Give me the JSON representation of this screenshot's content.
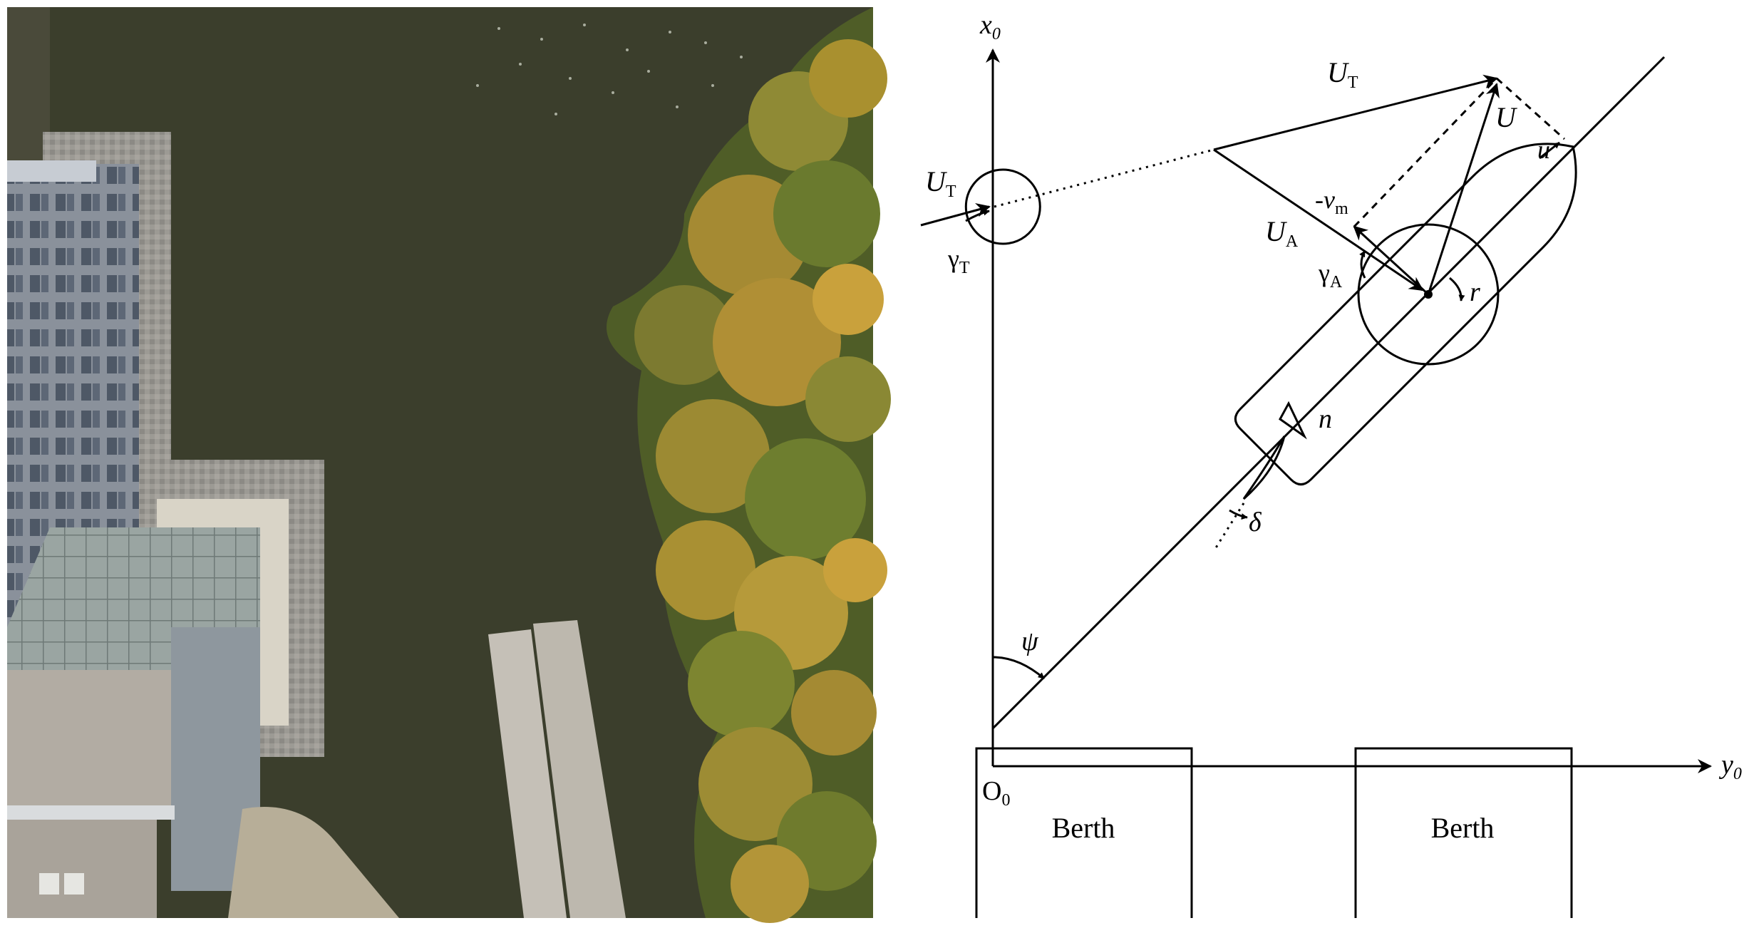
{
  "photo": {
    "description_icon": "aerial-photo-icon"
  },
  "diagram": {
    "axis_x": {
      "main": "x",
      "sub": "0"
    },
    "axis_y": {
      "main": "y",
      "sub": "0"
    },
    "origin": {
      "main": "O",
      "sub": "0"
    },
    "berth_left": "Berth",
    "berth_right": "Berth",
    "true_wind_speed": {
      "main": "U",
      "sub": "T"
    },
    "true_wind_angle": {
      "main": "γ",
      "sub": "T"
    },
    "true_wind_vector": {
      "main": "U",
      "sub": "T"
    },
    "apparent_wind_speed": {
      "main": "U",
      "sub": "A"
    },
    "apparent_wind_angle": {
      "main": "γ",
      "sub": "A"
    },
    "neg_sway": {
      "main": "-v",
      "sub": "m"
    },
    "speed": "U",
    "surge": "u",
    "yaw_rate": "r",
    "propeller": "n",
    "rudder": "δ",
    "heading": "ψ"
  },
  "colors": {
    "water": "#3b3e2c",
    "foliage_green": "#5a6b2c",
    "foliage_gold": "#a9862f",
    "building": "#8b929c",
    "concrete": "#b8b0a6"
  }
}
